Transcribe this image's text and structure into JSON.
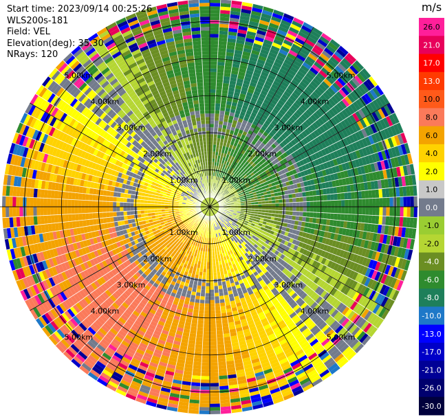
{
  "header": {
    "start_time": "Start time: 2023/09/14 00:25:26",
    "instrument": "WLS200s-181",
    "field": "Field: VEL",
    "elevation": "Elevation(deg): 35.30",
    "nrays": "NRays: 120"
  },
  "colorbar": {
    "unit": "m/s",
    "levels": [
      {
        "label": "26.0",
        "color": "#ff1f9a"
      },
      {
        "label": "21.0",
        "color": "#e8005a"
      },
      {
        "label": "17.0",
        "color": "#ff0000"
      },
      {
        "label": "13.0",
        "color": "#ff3a00"
      },
      {
        "label": "10.0",
        "color": "#ff5a1a"
      },
      {
        "label": "8.0",
        "color": "#fb7a5a"
      },
      {
        "label": "6.0",
        "color": "#f4a300"
      },
      {
        "label": "4.0",
        "color": "#ffd200"
      },
      {
        "label": "2.0",
        "color": "#ffff00"
      },
      {
        "label": "1.0",
        "color": "#c8c8c8"
      },
      {
        "label": "0.0",
        "color": "#737b8c"
      },
      {
        "label": "-1.0",
        "color": "#9acd32"
      },
      {
        "label": "-2.0",
        "color": "#b5d633"
      },
      {
        "label": "-4.0",
        "color": "#6b8e23"
      },
      {
        "label": "-6.0",
        "color": "#2e8b2e"
      },
      {
        "label": "-8.0",
        "color": "#1e7f5a"
      },
      {
        "label": "-10.0",
        "color": "#1e78c8"
      },
      {
        "label": "-13.0",
        "color": "#0000ff"
      },
      {
        "label": "-17.0",
        "color": "#0000c8"
      },
      {
        "label": "-21.0",
        "color": "#000096"
      },
      {
        "label": "-26.0",
        "color": "#00006e"
      },
      {
        "label": "-30.0",
        "color": "#00003c"
      }
    ]
  },
  "chart_data": {
    "type": "heatmap",
    "projection": "polar PPI",
    "range_rings_km": [
      1,
      2,
      3,
      4,
      5
    ],
    "ring_labels": [
      "1.00km",
      "2.00km",
      "3.00km",
      "4.00km",
      "5.00km"
    ],
    "max_range_km": 5.6,
    "azimuth_step_deg": 3,
    "gates_per_ray": 60,
    "description_of_pattern": "Positive (toward-yellow/orange) velocities on west and south sides, negative (green) on north and east; gray near-zero band between",
    "grid": true
  }
}
